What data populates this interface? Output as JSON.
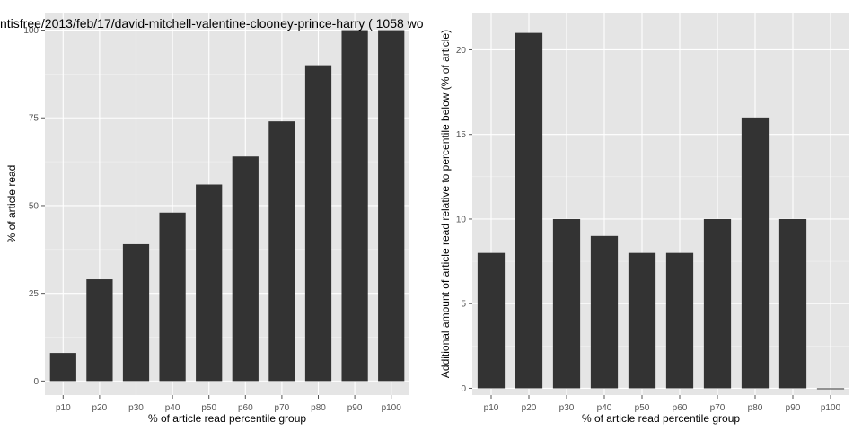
{
  "chart_data": [
    {
      "type": "bar",
      "title": "...ntisfree/2013/feb/17/david-mitchell-valentine-clooney-prince-harry ( 1058 wo",
      "xlabel": "% of article read percentile group",
      "ylabel": "% of article read",
      "categories": [
        "p10",
        "p20",
        "p30",
        "p40",
        "p50",
        "p60",
        "p70",
        "p80",
        "p90",
        "p100"
      ],
      "values": [
        8,
        29,
        39,
        48,
        56,
        64,
        74,
        90,
        100,
        100
      ],
      "ylim": [
        -4,
        105
      ],
      "yticks": [
        0,
        25,
        50,
        75,
        100
      ],
      "grid": true,
      "colors": {
        "panel": "#e5e5e5",
        "grid_major": "#ffffff",
        "grid_minor": "#f2f2f2",
        "bar": "#333333"
      }
    },
    {
      "type": "bar",
      "title": "",
      "xlabel": "% of article read percentile group",
      "ylabel": "Additional amount of article read relative to percentile below (% of article)",
      "categories": [
        "p10",
        "p20",
        "p30",
        "p40",
        "p50",
        "p60",
        "p70",
        "p80",
        "p90",
        "p100"
      ],
      "values": [
        8,
        21,
        10,
        9,
        8,
        8,
        10,
        16,
        10,
        0
      ],
      "ylim": [
        -0.4,
        22.2
      ],
      "yticks": [
        0,
        5,
        10,
        15,
        20
      ],
      "grid": true,
      "colors": {
        "panel": "#e5e5e5",
        "grid_major": "#ffffff",
        "grid_minor": "#f2f2f2",
        "bar": "#333333"
      }
    }
  ]
}
